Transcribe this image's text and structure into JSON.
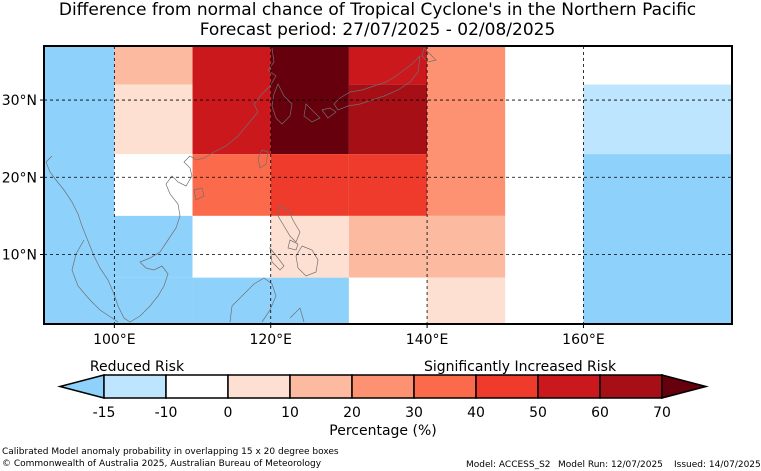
{
  "title": {
    "line1": "Difference from normal chance of Tropical Cyclone's in the Northern Pacific",
    "line2": "Forecast period: 27/07/2025 - 02/08/2025"
  },
  "map": {
    "lon_range": [
      91,
      179
    ],
    "lat_range": [
      1,
      37
    ],
    "lon_ticks": [
      {
        "value": 100,
        "label": "100°E"
      },
      {
        "value": 120,
        "label": "120°E"
      },
      {
        "value": 140,
        "label": "140°E"
      },
      {
        "value": 160,
        "label": "160°E"
      }
    ],
    "lat_ticks": [
      {
        "value": 30,
        "label": "30°N"
      },
      {
        "value": 20,
        "label": "20°N"
      },
      {
        "value": 10,
        "label": "10°N"
      }
    ],
    "cells": [
      {
        "lon0": 91,
        "lon1": 100,
        "lat0": 1,
        "lat1": 37,
        "color": "#8ed1fb"
      },
      {
        "lon0": 100,
        "lon1": 110,
        "lat0": 32,
        "lat1": 37,
        "color": "#fcbba1"
      },
      {
        "lon0": 100,
        "lon1": 110,
        "lat0": 23,
        "lat1": 32,
        "color": "#fee0d2"
      },
      {
        "lon0": 100,
        "lon1": 110,
        "lat0": 15,
        "lat1": 23,
        "color": "#ffffff"
      },
      {
        "lon0": 100,
        "lon1": 110,
        "lat0": 7,
        "lat1": 15,
        "color": "#8ed1fb"
      },
      {
        "lon0": 100,
        "lon1": 110,
        "lat0": 1,
        "lat1": 7,
        "color": "#8ed1fb"
      },
      {
        "lon0": 110,
        "lon1": 120,
        "lat0": 23,
        "lat1": 37,
        "color": "#cb181d"
      },
      {
        "lon0": 110,
        "lon1": 120,
        "lat0": 15,
        "lat1": 23,
        "color": "#fb6a4a"
      },
      {
        "lon0": 110,
        "lon1": 120,
        "lat0": 7,
        "lat1": 15,
        "color": "#ffffff"
      },
      {
        "lon0": 110,
        "lon1": 120,
        "lat0": 1,
        "lat1": 7,
        "color": "#8ed1fb"
      },
      {
        "lon0": 120,
        "lon1": 130,
        "lat0": 23,
        "lat1": 37,
        "color": "#67000d"
      },
      {
        "lon0": 120,
        "lon1": 130,
        "lat0": 15,
        "lat1": 23,
        "color": "#ef3b2c"
      },
      {
        "lon0": 120,
        "lon1": 130,
        "lat0": 7,
        "lat1": 15,
        "color": "#fee0d2"
      },
      {
        "lon0": 120,
        "lon1": 130,
        "lat0": 1,
        "lat1": 7,
        "color": "#8ed1fb"
      },
      {
        "lon0": 130,
        "lon1": 140,
        "lat0": 32,
        "lat1": 37,
        "color": "#cb181d"
      },
      {
        "lon0": 130,
        "lon1": 140,
        "lat0": 23,
        "lat1": 32,
        "color": "#a50f15"
      },
      {
        "lon0": 130,
        "lon1": 140,
        "lat0": 15,
        "lat1": 23,
        "color": "#ef3b2c"
      },
      {
        "lon0": 130,
        "lon1": 140,
        "lat0": 7,
        "lat1": 15,
        "color": "#fcbba1"
      },
      {
        "lon0": 130,
        "lon1": 140,
        "lat0": 1,
        "lat1": 7,
        "color": "#ffffff"
      },
      {
        "lon0": 140,
        "lon1": 150,
        "lat0": 15,
        "lat1": 37,
        "color": "#fc9272"
      },
      {
        "lon0": 140,
        "lon1": 150,
        "lat0": 7,
        "lat1": 15,
        "color": "#fcbba1"
      },
      {
        "lon0": 140,
        "lon1": 150,
        "lat0": 1,
        "lat1": 7,
        "color": "#fee0d2"
      },
      {
        "lon0": 150,
        "lon1": 160,
        "lat0": 1,
        "lat1": 37,
        "color": "#ffffff"
      },
      {
        "lon0": 160,
        "lon1": 179,
        "lat0": 32,
        "lat1": 37,
        "color": "#ffffff"
      },
      {
        "lon0": 160,
        "lon1": 179,
        "lat0": 23,
        "lat1": 32,
        "color": "#bde5fd"
      },
      {
        "lon0": 160,
        "lon1": 179,
        "lat0": 1,
        "lat1": 23,
        "color": "#8ed1fb"
      }
    ]
  },
  "colorbar": {
    "reduced_label": "Reduced Risk",
    "increased_label": "Significantly Increased Risk",
    "xlabel": "Percentage (%)",
    "under_color": "#8ed1fb",
    "over_color": "#67000d",
    "bins": [
      "#bde5fd",
      "#ffffff",
      "#fee0d2",
      "#fcbba1",
      "#fc9272",
      "#fb6a4a",
      "#ef3b2c",
      "#cb181d",
      "#a50f15"
    ],
    "ticks": [
      "-15",
      "-10",
      "0",
      "10",
      "20",
      "30",
      "40",
      "50",
      "60",
      "70"
    ]
  },
  "footer": {
    "note": "Calibrated Model anomaly probability in overlapping 15 x 20 degree boxes",
    "copyright": "© Commonwealth of Australia 2025, Australian Bureau of Meteorology",
    "model": "Model: ACCESS_S2",
    "model_run": "Model Run: 12/07/2025",
    "issued": "Issued: 14/07/2025"
  }
}
